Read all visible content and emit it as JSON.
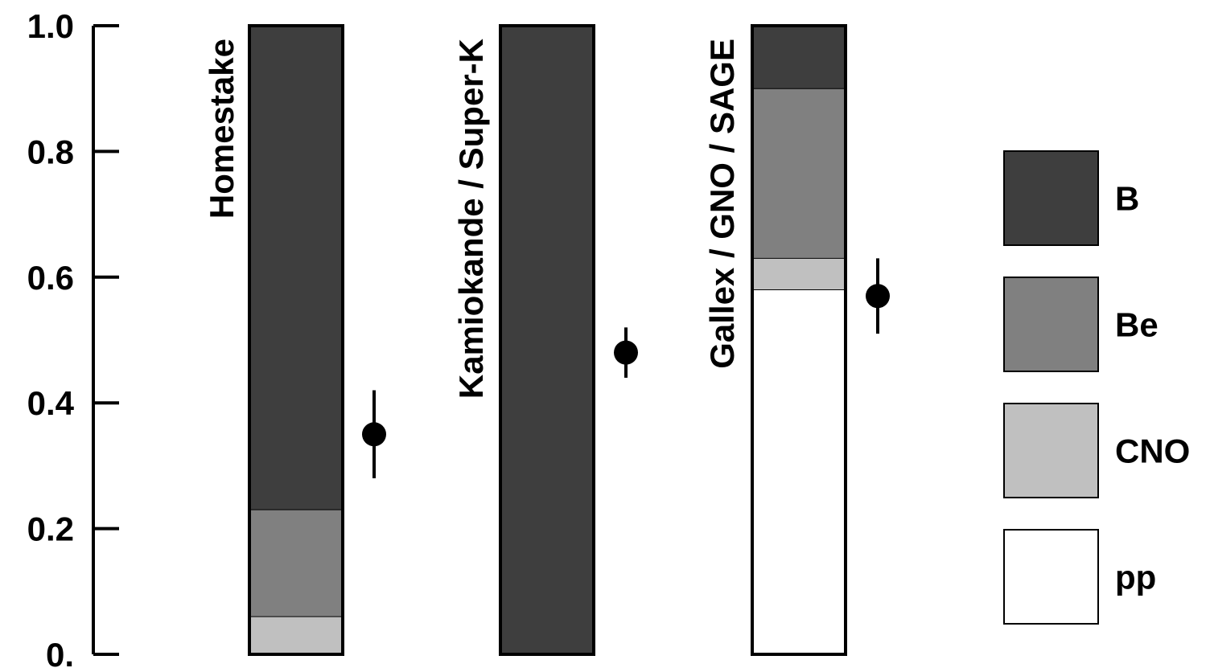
{
  "chart_data": {
    "type": "bar",
    "stacked": true,
    "ylim": [
      0,
      1.0
    ],
    "yticks": [
      {
        "value": 0.0,
        "label": "0."
      },
      {
        "value": 0.2,
        "label": "0.2"
      },
      {
        "value": 0.4,
        "label": "0.4"
      },
      {
        "value": 0.6,
        "label": "0.6"
      },
      {
        "value": 0.8,
        "label": "0.8"
      },
      {
        "value": 1.0,
        "label": "1.0"
      }
    ],
    "categories": [
      "Homestake",
      "Kamiokande / Super-K",
      "Gallex / GNO / SAGE"
    ],
    "series": [
      {
        "name": "pp",
        "color": "#ffffff",
        "values": [
          0.0,
          0.0,
          0.58
        ]
      },
      {
        "name": "CNO",
        "color": "#c0c0c0",
        "values": [
          0.06,
          0.0,
          0.05
        ]
      },
      {
        "name": "Be",
        "color": "#808080",
        "values": [
          0.17,
          0.0,
          0.27
        ]
      },
      {
        "name": "B",
        "color": "#3e3e3e",
        "values": [
          0.77,
          1.0,
          0.1
        ]
      }
    ],
    "measurements": [
      {
        "category": "Homestake",
        "value": 0.35,
        "low": 0.28,
        "high": 0.42
      },
      {
        "category": "Kamiokande / Super-K",
        "value": 0.48,
        "low": 0.44,
        "high": 0.52
      },
      {
        "category": "Gallex / GNO / SAGE",
        "value": 0.57,
        "low": 0.51,
        "high": 0.63
      }
    ],
    "legend": {
      "placement": "right",
      "entries": [
        "B",
        "Be",
        "CNO",
        "pp"
      ]
    }
  }
}
